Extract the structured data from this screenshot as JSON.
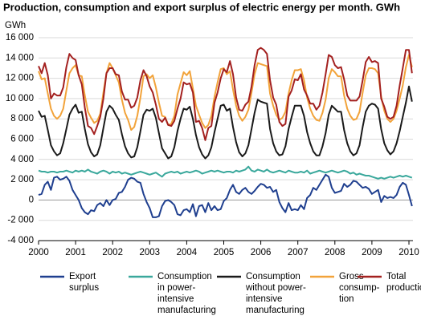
{
  "chart_data": {
    "type": "line",
    "title": "Production, consumption and export surplus of electric energy per month. GWh",
    "y_label": "GWh",
    "categories": [
      "2000",
      null,
      null,
      null,
      null,
      null,
      null,
      null,
      null,
      null,
      null,
      null,
      "2001",
      null,
      null,
      null,
      null,
      null,
      null,
      null,
      null,
      null,
      null,
      null,
      "2002",
      null,
      null,
      null,
      null,
      null,
      null,
      null,
      null,
      null,
      null,
      null,
      "2003",
      null,
      null,
      null,
      null,
      null,
      null,
      null,
      null,
      null,
      null,
      null,
      "2004",
      null,
      null,
      null,
      null,
      null,
      null,
      null,
      null,
      null,
      null,
      null,
      "2005",
      null,
      null,
      null,
      null,
      null,
      null,
      null,
      null,
      null,
      null,
      null,
      "2006",
      null,
      null,
      null,
      null,
      null,
      null,
      null,
      null,
      null,
      null,
      null,
      "2007",
      null,
      null,
      null,
      null,
      null,
      null,
      null,
      null,
      null,
      null,
      null,
      "2008",
      null,
      null,
      null,
      null,
      null,
      null,
      null,
      null,
      null,
      null,
      null,
      "2009",
      null,
      null,
      null,
      null,
      null,
      null,
      null,
      null,
      null,
      null,
      null,
      "2010",
      null
    ],
    "ylim": [
      -4000,
      16000
    ],
    "yticks": [
      {
        "value": -4000,
        "label": "-4 000"
      },
      {
        "value": -2000,
        "label": "-2 000"
      },
      0,
      {
        "value": 2000,
        "label": "2 000"
      },
      {
        "value": 4000,
        "label": "4 000"
      },
      {
        "value": 6000,
        "label": "6 000"
      },
      {
        "value": 8000,
        "label": "8 000"
      },
      {
        "value": 10000,
        "label": "10 000"
      },
      {
        "value": 12000,
        "label": "12 000"
      },
      {
        "value": 14000,
        "label": "14 000"
      },
      {
        "value": 16000,
        "label": "16 000"
      }
    ],
    "grid": true,
    "series": [
      {
        "name": "Export\nsurplus",
        "color": "#1f3f8f",
        "values": [
          500,
          600,
          1500,
          1800,
          1000,
          2200,
          2300,
          2000,
          2100,
          2300,
          1900,
          1000,
          500,
          0,
          -800,
          -1200,
          -1400,
          -1000,
          -1100,
          -500,
          -300,
          -600,
          0,
          -500,
          0,
          100,
          700,
          800,
          1300,
          2000,
          2200,
          2100,
          1800,
          1700,
          600,
          -200,
          -800,
          -1700,
          -1700,
          -1600,
          -600,
          -100,
          0,
          -200,
          -500,
          -1400,
          -1500,
          -1000,
          -900,
          -1200,
          -400,
          -1600,
          -600,
          -500,
          -1200,
          -300,
          -1000,
          -600,
          -1000,
          -900,
          -100,
          200,
          1000,
          1500,
          800,
          600,
          1000,
          1200,
          800,
          600,
          900,
          1300,
          1600,
          1500,
          1200,
          1300,
          800,
          1000,
          -200,
          -800,
          -1200,
          -300,
          -1000,
          -900,
          -1000,
          -500,
          -900,
          200,
          500,
          1200,
          1000,
          1500,
          2000,
          2500,
          2300,
          1200,
          700,
          800,
          900,
          1600,
          1300,
          1500,
          1900,
          1800,
          1500,
          1200,
          1300,
          1100,
          600,
          800,
          1000,
          -200,
          400,
          200,
          300,
          200,
          500,
          1300,
          1700,
          1500,
          500,
          -600
        ]
      },
      {
        "name": "Consumption\nin power-\nintensive\nmanufacturing",
        "color": "#3aa89c",
        "values": [
          2900,
          2800,
          2800,
          2700,
          2800,
          2800,
          2700,
          2800,
          2800,
          2900,
          2800,
          2700,
          2900,
          2800,
          2900,
          2800,
          3000,
          2800,
          2700,
          2600,
          2800,
          2900,
          2800,
          2600,
          2800,
          2700,
          2800,
          2600,
          2700,
          2600,
          2500,
          2600,
          2700,
          2800,
          2700,
          2600,
          2500,
          2600,
          2700,
          2500,
          2300,
          2600,
          2700,
          2800,
          2700,
          2800,
          2600,
          2700,
          2800,
          2700,
          2800,
          2900,
          2800,
          2600,
          2700,
          2800,
          2900,
          2800,
          2900,
          2800,
          2700,
          2800,
          2800,
          2700,
          2900,
          2800,
          2900,
          3000,
          3300,
          2900,
          2800,
          3000,
          2900,
          2800,
          3000,
          2800,
          2700,
          2800,
          2900,
          2800,
          2700,
          2900,
          2800,
          2700,
          2700,
          2800,
          2700,
          2900,
          2600,
          2700,
          2800,
          2900,
          2800,
          2700,
          2800,
          2900,
          2800,
          2700,
          2800,
          2900,
          2800,
          2600,
          2700,
          2500,
          2600,
          2500,
          2400,
          2400,
          2300,
          2200,
          2100,
          2200,
          2100,
          2200,
          2300,
          2200,
          2300,
          2400,
          2300,
          2400,
          2300,
          2200
        ]
      },
      {
        "name": "Consumption\nwithout power-\nintensive\nmanufacturing",
        "color": "#1a1a1a",
        "values": [
          8800,
          8200,
          8300,
          6900,
          5400,
          4800,
          4400,
          4600,
          5600,
          7000,
          8400,
          9000,
          9400,
          8600,
          8700,
          7000,
          5500,
          4700,
          4300,
          4500,
          5400,
          7100,
          8700,
          9300,
          9000,
          8400,
          7900,
          6500,
          5300,
          4600,
          4200,
          4300,
          5200,
          6800,
          8400,
          8900,
          8800,
          9000,
          8100,
          6600,
          5100,
          4600,
          4100,
          4300,
          5200,
          6800,
          8000,
          9000,
          8900,
          9200,
          8000,
          6400,
          5200,
          4500,
          4100,
          4400,
          5200,
          6700,
          8000,
          9300,
          9400,
          8800,
          9000,
          7200,
          5700,
          4700,
          4300,
          4600,
          5400,
          7000,
          8600,
          9900,
          9700,
          9600,
          9500,
          7000,
          5600,
          4800,
          4400,
          4500,
          5300,
          7000,
          8200,
          9300,
          9300,
          9300,
          8300,
          6700,
          5600,
          4800,
          4400,
          4400,
          5300,
          6600,
          8400,
          9300,
          9000,
          8700,
          8700,
          6900,
          5600,
          4800,
          4400,
          4600,
          5400,
          7200,
          8700,
          9300,
          9500,
          9400,
          9000,
          7000,
          5600,
          4900,
          4500,
          4800,
          5600,
          6800,
          8200,
          9600,
          11200,
          9700
        ]
      },
      {
        "name": "Gross\nconsump-\ntion",
        "color": "#f2a33a",
        "values": [
          12700,
          11900,
          12000,
          10500,
          9000,
          8300,
          8000,
          8300,
          9000,
          10800,
          12500,
          13000,
          13300,
          12300,
          12200,
          10300,
          8700,
          8100,
          7600,
          7800,
          8500,
          10600,
          12500,
          13500,
          13000,
          12300,
          11600,
          9900,
          8600,
          7900,
          6900,
          7200,
          8300,
          10100,
          12200,
          12400,
          12000,
          12300,
          11100,
          9600,
          8300,
          8200,
          7400,
          7500,
          8300,
          10400,
          11500,
          12600,
          12300,
          12700,
          11000,
          9300,
          8400,
          7600,
          7100,
          7400,
          8300,
          10200,
          11600,
          12900,
          13000,
          12400,
          12700,
          10900,
          9300,
          8300,
          7800,
          8200,
          8900,
          10600,
          12400,
          13500,
          13400,
          13300,
          13200,
          10500,
          9300,
          8400,
          7900,
          8100,
          8700,
          10500,
          11800,
          12800,
          12800,
          12900,
          11800,
          10100,
          9000,
          8300,
          7900,
          7800,
          8600,
          9900,
          12000,
          12900,
          12600,
          12200,
          12200,
          10300,
          9000,
          8300,
          7900,
          8000,
          8700,
          10600,
          12300,
          13000,
          13000,
          12900,
          12500,
          10200,
          8800,
          8000,
          7700,
          8000,
          8800,
          10000,
          11300,
          13100,
          14300,
          13100
        ]
      },
      {
        "name": "Total\nproduction",
        "color": "#a3201f",
        "values": [
          13200,
          12500,
          13500,
          12300,
          10000,
          10500,
          10300,
          10300,
          11100,
          13100,
          14400,
          14000,
          13800,
          12300,
          11400,
          9100,
          7300,
          7100,
          6500,
          7300,
          8200,
          10000,
          12500,
          13000,
          13000,
          12400,
          12300,
          10700,
          9900,
          9900,
          9100,
          9300,
          10100,
          11800,
          12800,
          12200,
          11200,
          10600,
          9400,
          8000,
          7700,
          8100,
          7400,
          7300,
          7800,
          9000,
          10000,
          11600,
          11400,
          11500,
          10600,
          7700,
          7800,
          7100,
          5900,
          7100,
          7300,
          9600,
          10600,
          12000,
          12900,
          12600,
          13700,
          12400,
          10100,
          8900,
          8800,
          9400,
          9700,
          11200,
          13300,
          14800,
          15000,
          14800,
          14400,
          11800,
          10100,
          9400,
          7700,
          7300,
          7500,
          10200,
          10800,
          11900,
          11800,
          12400,
          10900,
          10300,
          9500,
          9500,
          8900,
          9300,
          10600,
          12400,
          14300,
          14100,
          13300,
          13000,
          13100,
          11900,
          10300,
          9800,
          9800,
          9800,
          10200,
          11800,
          13600,
          14100,
          13600,
          13700,
          13500,
          10000,
          9200,
          8200,
          8000,
          8200,
          9300,
          11300,
          13000,
          14800,
          14800,
          12500
        ]
      }
    ]
  }
}
